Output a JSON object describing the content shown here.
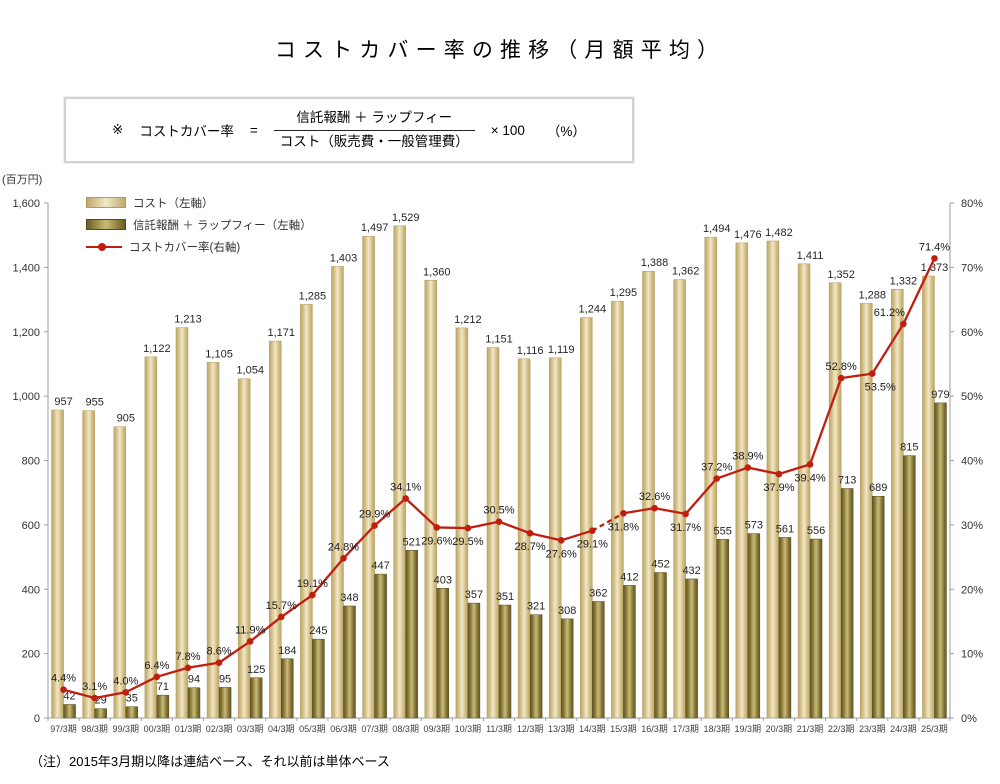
{
  "title": "コストカバー率の推移（月額平均）",
  "formula": {
    "marker": "※",
    "label": "コストカバー率",
    "equals": "=",
    "numerator": "信託報酬 ＋ ラップフィー",
    "denominator": "コスト（販売費・一般管理費）",
    "multiplier": "× 100",
    "unit": "（%）"
  },
  "note": "（注）2015年3月期以降は連結ベース、それ以前は単体ベース",
  "chart_data": {
    "type": "bar+line combo",
    "title": "コストカバー率の推移（月額平均）",
    "grid": false,
    "legend_position": "top-left inside plot",
    "categories": [
      "97/3期",
      "98/3期",
      "99/3期",
      "00/3期",
      "01/3期",
      "02/3期",
      "03/3期",
      "04/3期",
      "05/3期",
      "06/3期",
      "07/3期",
      "08/3期",
      "09/3期",
      "10/3期",
      "11/3期",
      "12/3期",
      "13/3期",
      "14/3期",
      "15/3期",
      "16/3期",
      "17/3期",
      "18/3期",
      "19/3期",
      "20/3期",
      "21/3期",
      "22/3期",
      "23/3期",
      "24/3期",
      "25/3期"
    ],
    "left_axis": {
      "label": "(百万円)",
      "min": 0,
      "max": 1600,
      "step": 200
    },
    "right_axis": {
      "min": 0,
      "max": 80,
      "step": 10,
      "suffix": "%"
    },
    "series": [
      {
        "name": "コスト（左軸）",
        "type": "bar",
        "axis": "left",
        "color_edge": "#bfa96c",
        "color_mid": "#f1e8c8",
        "stroke": "#b09b5d",
        "values": [
          957,
          955,
          905,
          1122,
          1213,
          1105,
          1054,
          1171,
          1285,
          1403,
          1497,
          1529,
          1360,
          1212,
          1151,
          1116,
          1119,
          1244,
          1295,
          1388,
          1362,
          1494,
          1476,
          1482,
          1411,
          1352,
          1288,
          1332,
          1373
        ]
      },
      {
        "name": "信託報酬 ＋ ラップフィー（左軸）",
        "type": "bar",
        "axis": "left",
        "color_edge": "#6b5d24",
        "color_mid": "#cabb74",
        "stroke": "#564a1c",
        "values": [
          42,
          29,
          35,
          71,
          94,
          95,
          125,
          184,
          245,
          348,
          447,
          521,
          403,
          357,
          351,
          321,
          308,
          362,
          412,
          452,
          432,
          555,
          573,
          561,
          556,
          713,
          689,
          815,
          979
        ]
      },
      {
        "name": "コストカバー率(右軸)",
        "type": "line",
        "axis": "right",
        "color": "#c01e0f",
        "values": [
          4.4,
          3.1,
          4.0,
          6.4,
          7.8,
          8.6,
          11.9,
          15.7,
          19.1,
          24.8,
          29.9,
          34.1,
          29.6,
          29.5,
          30.5,
          28.7,
          27.6,
          29.1,
          31.8,
          32.6,
          31.7,
          37.2,
          38.9,
          37.9,
          39.4,
          52.8,
          53.5,
          61.2,
          71.4
        ],
        "dashed_between": [
          17,
          18
        ],
        "label_below": [
          12,
          13,
          15,
          16,
          17,
          18,
          20,
          23,
          24,
          26
        ],
        "label_dx": {
          "26": 8,
          "27": -14
        }
      }
    ],
    "colors": {
      "axis": "#9e9e9e",
      "value_label": "#262626",
      "tick_label": "#333333"
    }
  }
}
